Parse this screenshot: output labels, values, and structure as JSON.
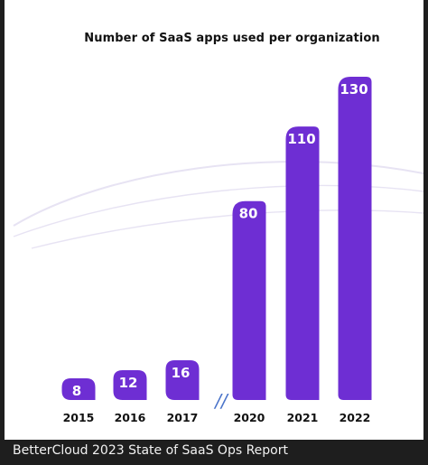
{
  "caption": "BetterCloud 2023 State of SaaS Ops Report",
  "chart_data": {
    "type": "bar",
    "title": "Number of SaaS apps used per organization",
    "categories": [
      "2015",
      "2016",
      "2017",
      "2020",
      "2021",
      "2022"
    ],
    "values": [
      8,
      12,
      16,
      80,
      110,
      130
    ],
    "xlabel": "",
    "ylabel": "",
    "axis_break": {
      "between": [
        "2017",
        "2020"
      ],
      "label": "//"
    },
    "grid": false,
    "legend": "none",
    "colors": {
      "bar": "#6e2ed3",
      "label": "#ffffff",
      "tick": "#111111",
      "break": "#4a73c9",
      "swoosh": "#e7e3f3"
    }
  }
}
